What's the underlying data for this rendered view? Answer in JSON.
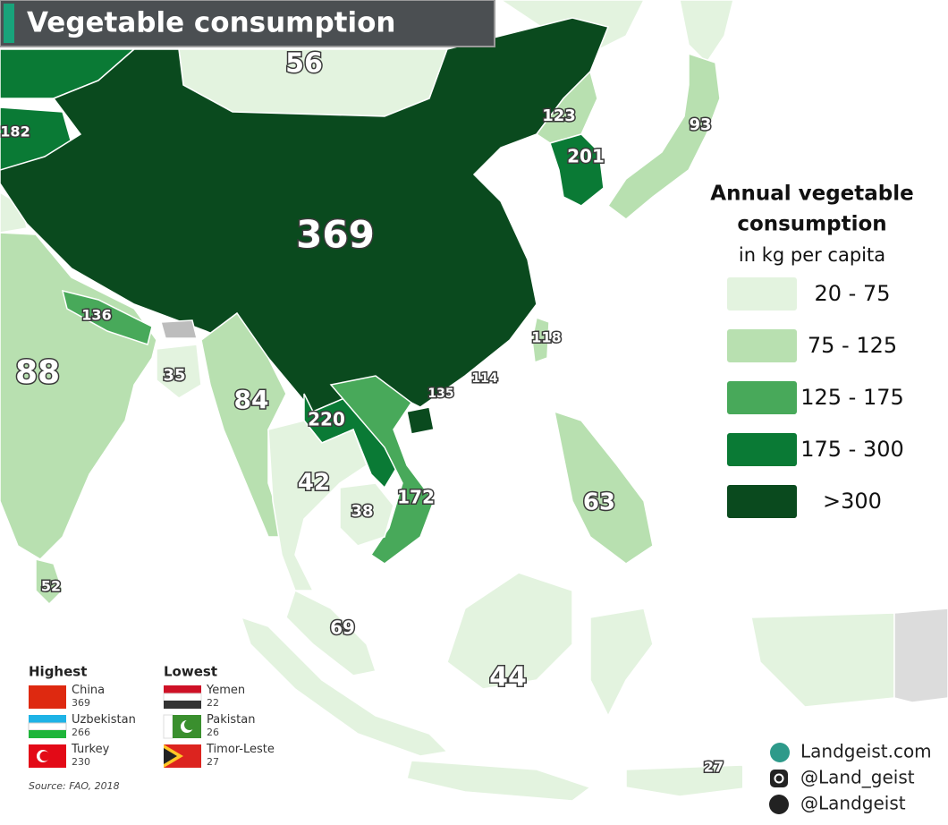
{
  "title": "Vegetable consumption",
  "map_labels": [
    56,
    123,
    93,
    182,
    369,
    201,
    136,
    118,
    114,
    135,
    88,
    35,
    84,
    220,
    42,
    172,
    38,
    63,
    52,
    69,
    44,
    27
  ],
  "legend": {
    "title": [
      "Annual vegetable",
      "consumption"
    ],
    "subtitle": "in kg per capita",
    "bins": [
      {
        "label": "20 - 75",
        "color": "#e3f3df"
      },
      {
        "label": "75 - 125",
        "color": "#b8e0b0"
      },
      {
        "label": "125 - 175",
        "color": "#48a95a"
      },
      {
        "label": "175 - 300",
        "color": "#0a7a35"
      },
      {
        "label": ">300",
        "color": "#0a4a1e"
      }
    ]
  },
  "highest": {
    "heading": "Highest",
    "items": [
      {
        "name": "China",
        "value": 369
      },
      {
        "name": "Uzbekistan",
        "value": 266
      },
      {
        "name": "Turkey",
        "value": 230
      }
    ]
  },
  "lowest": {
    "heading": "Lowest",
    "items": [
      {
        "name": "Yemen",
        "value": 22
      },
      {
        "name": "Pakistan",
        "value": 26
      },
      {
        "name": "Timor-Leste",
        "value": 27
      }
    ]
  },
  "source": "Source: FAO, 2018",
  "credits": [
    "Landgeist.com",
    "@Land_geist",
    "@Landgeist"
  ]
}
